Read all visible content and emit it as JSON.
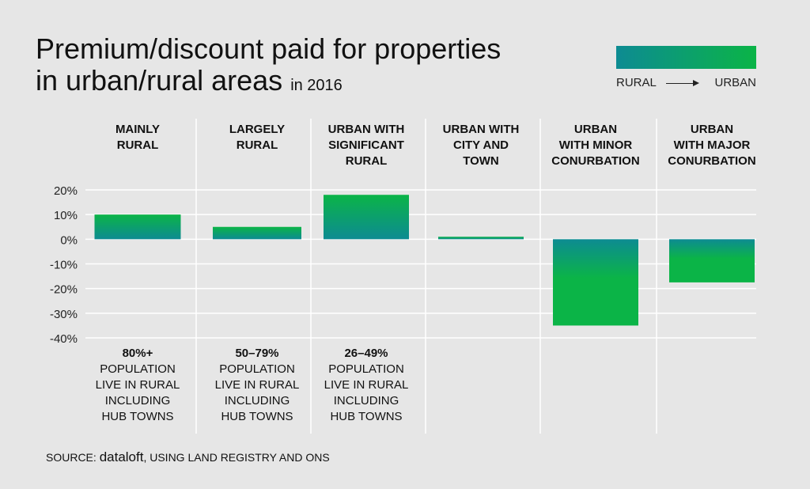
{
  "title": {
    "line1": "Premium/discount paid for properties",
    "line2": "in urban/rural areas",
    "suffix": "in 2016"
  },
  "legend": {
    "left_label": "RURAL",
    "right_label": "URBAN",
    "gradient_colors": [
      "#0d8b92",
      "#0bb447"
    ]
  },
  "categories": [
    {
      "label": "MAINLY RURAL",
      "lines": [
        "MAINLY",
        "RURAL"
      ]
    },
    {
      "label": "LARGELY RURAL",
      "lines": [
        "LARGELY",
        "RURAL"
      ]
    },
    {
      "label": "URBAN WITH SIGNIFICANT RURAL",
      "lines": [
        "URBAN WITH",
        "SIGNIFICANT",
        "RURAL"
      ]
    },
    {
      "label": "URBAN WITH CITY AND TOWN",
      "lines": [
        "URBAN WITH",
        "CITY AND",
        "TOWN"
      ]
    },
    {
      "label": "URBAN WITH MINOR CONURBATION",
      "lines": [
        "URBAN",
        "WITH MINOR",
        "CONURBATION"
      ]
    },
    {
      "label": "URBAN WITH MAJOR CONURBATION",
      "lines": [
        "URBAN",
        "WITH MAJOR",
        "CONURBATION"
      ]
    }
  ],
  "population_notes": [
    {
      "pct": "80%+",
      "lines": [
        "POPULATION",
        "LIVE IN RURAL",
        "INCLUDING",
        "HUB TOWNS"
      ]
    },
    {
      "pct": "50–79%",
      "lines": [
        "POPULATION",
        "LIVE IN RURAL",
        "INCLUDING",
        "HUB TOWNS"
      ]
    },
    {
      "pct": "26–49%",
      "lines": [
        "POPULATION",
        "LIVE IN RURAL",
        "INCLUDING",
        "HUB TOWNS"
      ]
    }
  ],
  "source": {
    "prefix": "SOURCE:",
    "brand": "dataloft",
    "suffix": ", USING LAND REGISTRY AND ONS"
  },
  "chart_data": {
    "type": "bar",
    "categories": [
      "MAINLY RURAL",
      "LARGELY RURAL",
      "URBAN WITH SIGNIFICANT RURAL",
      "URBAN WITH CITY AND TOWN",
      "URBAN WITH MINOR CONURBATION",
      "URBAN WITH MAJOR CONURBATION"
    ],
    "values": [
      10,
      5,
      18,
      1,
      -35,
      -17.5
    ],
    "ylim": [
      -40,
      20
    ],
    "yticks": [
      20,
      10,
      0,
      -10,
      -20,
      -30,
      -40
    ],
    "ytick_labels": [
      "20%",
      "10%",
      "0%",
      "-10%",
      "-20%",
      "-30%",
      "-40%"
    ],
    "grid": true,
    "colors": [
      "#0d8b92",
      "#0bb447"
    ]
  }
}
